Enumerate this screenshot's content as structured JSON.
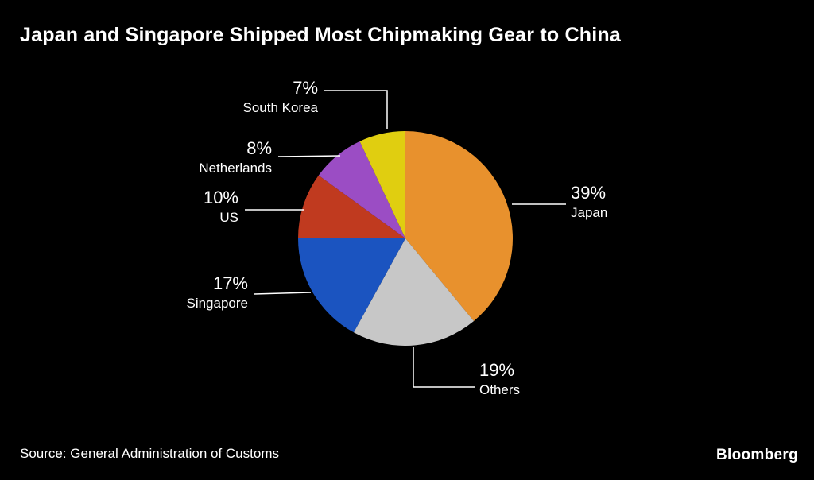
{
  "title": "Japan and Singapore Shipped Most Chipmaking Gear to China",
  "source": "Source: General Administration of Customs",
  "brand": "Bloomberg",
  "chart_data": {
    "type": "pie",
    "title": "Japan and Singapore Shipped Most Chipmaking Gear to China",
    "start_angle_deg": 0,
    "direction": "clockwise",
    "legend_position": "callout-labels",
    "slices": [
      {
        "label": "Japan",
        "value": 39,
        "pct": "39%",
        "color": "#E8912D"
      },
      {
        "label": "Others",
        "value": 19,
        "pct": "19%",
        "color": "#C7C7C7"
      },
      {
        "label": "Singapore",
        "value": 17,
        "pct": "17%",
        "color": "#1B54C0"
      },
      {
        "label": "US",
        "value": 10,
        "pct": "10%",
        "color": "#C03A1F"
      },
      {
        "label": "Netherlands",
        "value": 8,
        "pct": "8%",
        "color": "#9B4DC4"
      },
      {
        "label": "South Korea",
        "value": 7,
        "pct": "7%",
        "color": "#E0CE10"
      }
    ]
  }
}
